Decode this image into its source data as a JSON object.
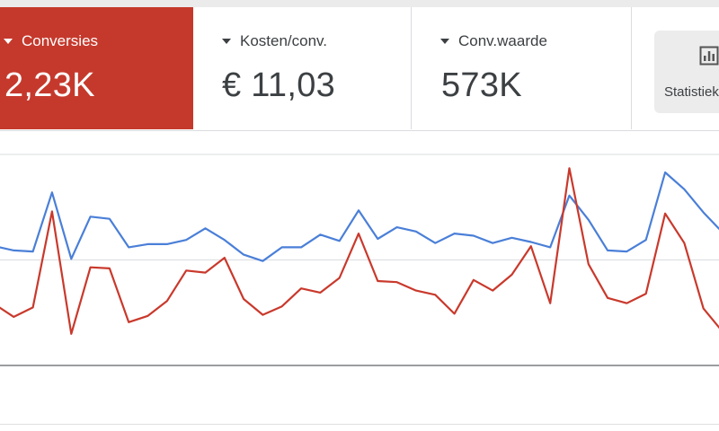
{
  "scorecards": [
    {
      "label": "Conversies",
      "value": "2,23K",
      "active": true
    },
    {
      "label": "Kosten/conv.",
      "value": "€ 11,03",
      "active": false
    },
    {
      "label": "Conv.waarde",
      "value": "573K",
      "active": false
    }
  ],
  "stats_button": {
    "label": "Statistieken",
    "icon": "bar-chart-icon"
  },
  "colors": {
    "active_card": "#c5392c",
    "series_blue": "#4a7fd8",
    "series_red": "#c9392c"
  },
  "chart_data": {
    "type": "line",
    "grid": true,
    "ylim": [
      0,
      10
    ],
    "series": [
      {
        "name": "",
        "color": "#4a7fd8",
        "values": [
          5.65,
          5.45,
          5.4,
          8.2,
          5.05,
          7.05,
          6.95,
          5.6,
          5.75,
          5.75,
          5.95,
          6.5,
          5.95,
          5.25,
          4.95,
          5.6,
          5.6,
          6.2,
          5.9,
          7.35,
          6.0,
          6.55,
          6.35,
          5.8,
          6.25,
          6.15,
          5.8,
          6.05,
          5.85,
          5.6,
          8.05,
          6.9,
          5.45,
          5.4,
          5.95,
          9.15,
          8.35,
          7.25,
          6.3
        ]
      },
      {
        "name": "",
        "color": "#c9392c",
        "values": [
          2.9,
          2.3,
          2.75,
          7.3,
          1.5,
          4.65,
          4.6,
          2.05,
          2.35,
          3.05,
          4.5,
          4.4,
          5.1,
          3.15,
          2.4,
          2.8,
          3.65,
          3.45,
          4.15,
          6.25,
          4.0,
          3.95,
          3.55,
          3.35,
          2.45,
          4.05,
          3.55,
          4.3,
          5.65,
          2.95,
          9.35,
          4.8,
          3.2,
          2.95,
          3.4,
          7.2,
          5.8,
          2.7,
          1.6
        ]
      }
    ]
  }
}
